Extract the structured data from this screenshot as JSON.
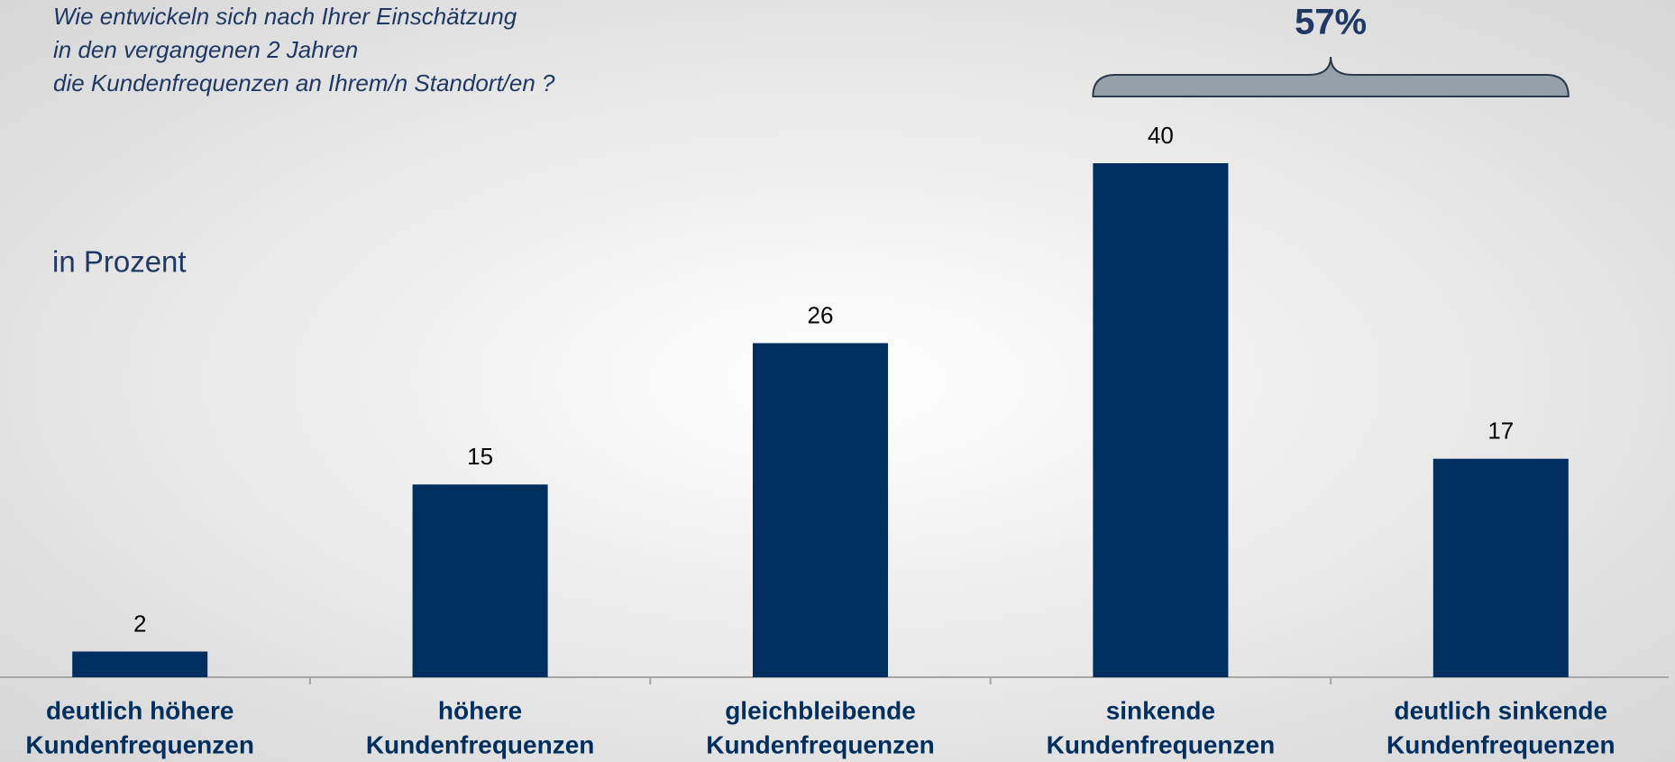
{
  "chart_data": {
    "type": "bar",
    "title": [
      "Wie entwickeln sich nach Ihrer Einschätzung",
      "in den vergangenen 2 Jahren",
      "die Kundenfrequenzen an Ihrem/n Standort/en ?"
    ],
    "subtitle": "in Prozent",
    "categories": [
      [
        "deutlich höhere",
        "Kundenfrequenzen"
      ],
      [
        "höhere",
        "Kundenfrequenzen"
      ],
      [
        "gleichbleibende",
        "Kundenfrequenzen"
      ],
      [
        "sinkende",
        "Kundenfrequenzen"
      ],
      [
        "deutlich sinkende",
        "Kundenfrequenzen"
      ]
    ],
    "values": [
      2,
      15,
      26,
      40,
      17
    ],
    "color": "#002f5f",
    "ylim": [
      0,
      50
    ],
    "annotation": "57%"
  }
}
